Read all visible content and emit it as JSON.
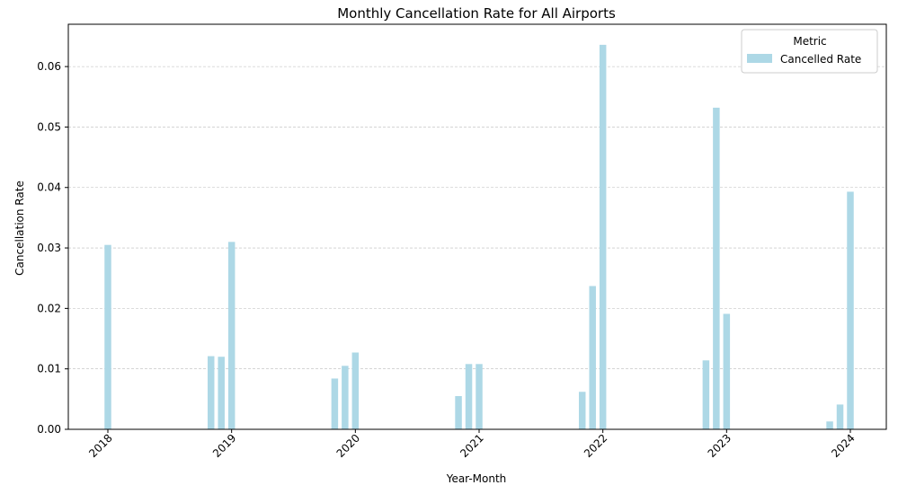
{
  "chart_data": {
    "type": "bar",
    "title": "Monthly Cancellation Rate for All Airports",
    "xlabel": "Year-Month",
    "ylabel": "Cancellation Rate",
    "ylim": [
      0,
      0.067
    ],
    "yticks": [
      0.0,
      0.01,
      0.02,
      0.03,
      0.04,
      0.05,
      0.06
    ],
    "ytick_labels": [
      "0.00",
      "0.01",
      "0.02",
      "0.03",
      "0.04",
      "0.05",
      "0.06"
    ],
    "xticks": [
      "2018",
      "2019",
      "2020",
      "2021",
      "2022",
      "2023",
      "2024"
    ],
    "grid": "y-dashed",
    "legend": {
      "title": "Metric",
      "placement": "top-right"
    },
    "bar_color": "#add8e6",
    "series": [
      {
        "name": "Cancelled Rate",
        "points": [
          {
            "x": "2018-01",
            "value": 0.0305
          },
          {
            "x": "2018-11",
            "value": 0.0121
          },
          {
            "x": "2018-12",
            "value": 0.012
          },
          {
            "x": "2019-01",
            "value": 0.031
          },
          {
            "x": "2019-11",
            "value": 0.0084
          },
          {
            "x": "2019-12",
            "value": 0.0105
          },
          {
            "x": "2020-01",
            "value": 0.0127
          },
          {
            "x": "2020-11",
            "value": 0.0055
          },
          {
            "x": "2020-12",
            "value": 0.0108
          },
          {
            "x": "2021-01",
            "value": 0.0108
          },
          {
            "x": "2021-11",
            "value": 0.0062
          },
          {
            "x": "2021-12",
            "value": 0.0237
          },
          {
            "x": "2022-01",
            "value": 0.0636
          },
          {
            "x": "2022-11",
            "value": 0.0114
          },
          {
            "x": "2022-12",
            "value": 0.0532
          },
          {
            "x": "2023-01",
            "value": 0.0191
          },
          {
            "x": "2023-11",
            "value": 0.0013
          },
          {
            "x": "2023-12",
            "value": 0.0041
          },
          {
            "x": "2024-01",
            "value": 0.0393
          }
        ]
      }
    ]
  }
}
